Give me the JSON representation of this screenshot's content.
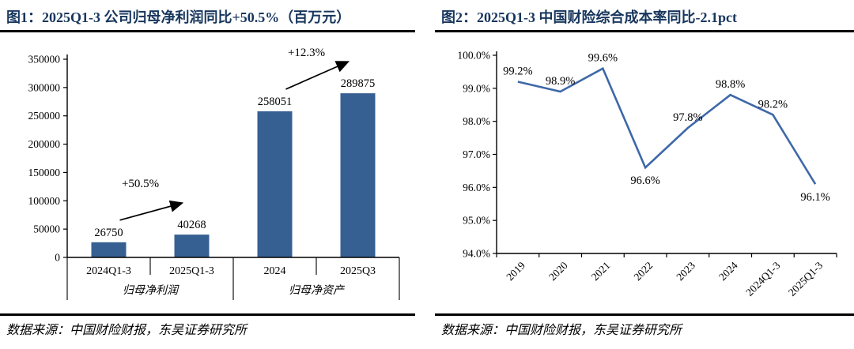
{
  "colors": {
    "title_color": "#17365d",
    "rule_color": "#000000",
    "bar_color": "#366092",
    "line_color": "#3e68a8",
    "annotation_color": "#000000"
  },
  "figures": [
    {
      "title": "图1：2025Q1-3 公司归母净利润同比+50.5%（百万元）",
      "source": "数据来源：中国财险财报，东吴证券研究所",
      "chart_data": {
        "type": "bar",
        "title": "2025Q1-3 公司归母净利润同比+50.5%（百万元）",
        "categories": [
          "2024Q1-3",
          "2025Q1-3",
          "2024",
          "2025Q3"
        ],
        "values": [
          26750,
          40268,
          258051,
          289875
        ],
        "value_labels": [
          "26750",
          "40268",
          "258051",
          "289875"
        ],
        "group_labels": [
          {
            "label": "归母净利润",
            "span": [
              0,
              1
            ]
          },
          {
            "label": "归母净资产",
            "span": [
              2,
              3
            ]
          }
        ],
        "ylim": [
          0,
          350000
        ],
        "ytick_step": 50000,
        "ytick_labels": [
          "0",
          "50000",
          "100000",
          "150000",
          "200000",
          "250000",
          "300000",
          "350000"
        ],
        "grid": false,
        "legend": "none",
        "annotations": [
          {
            "text": "+50.5%",
            "from": 0,
            "to": 1
          },
          {
            "text": "+12.3%",
            "from": 2,
            "to": 3
          }
        ],
        "bar_color": "#366092"
      }
    },
    {
      "title": "图2：2025Q1-3 中国财险综合成本率同比-2.1pct",
      "source": "数据来源：中国财险财报，东吴证券研究所",
      "chart_data": {
        "type": "line",
        "title": "2025Q1-3 中国财险综合成本率同比-2.1pct",
        "categories": [
          "2019",
          "2020",
          "2021",
          "2022",
          "2023",
          "2024",
          "2024Q1-3",
          "2025Q1-3"
        ],
        "values": [
          99.2,
          98.9,
          99.6,
          96.6,
          97.8,
          98.8,
          98.2,
          96.1
        ],
        "point_labels": [
          "99.2%",
          "98.9%",
          "99.6%",
          "96.6%",
          "97.8%",
          "98.8%",
          "98.2%",
          "96.1%"
        ],
        "label_side": [
          "above",
          "above",
          "above",
          "below",
          "above",
          "above",
          "above",
          "below"
        ],
        "ylim": [
          94.0,
          100.0
        ],
        "ytick_labels": [
          "94.0%",
          "95.0%",
          "96.0%",
          "97.0%",
          "98.0%",
          "99.0%",
          "100.0%"
        ],
        "x_label_rotation": -45,
        "grid": false,
        "legend": "none",
        "line_color": "#3e68a8"
      }
    }
  ]
}
